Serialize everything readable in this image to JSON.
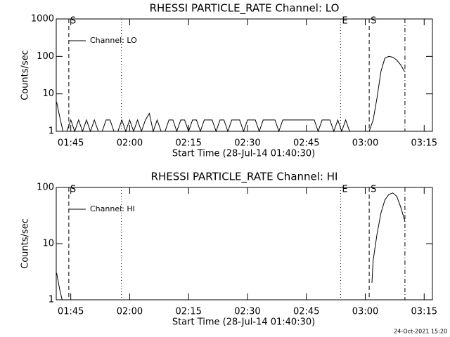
{
  "chart_data": [
    {
      "type": "line",
      "title": "RHESSI PARTICLE_RATE Channel: LO",
      "x_label": "Start Time (28-Jul-14 01:40:30)",
      "y_label": "Counts/sec",
      "log_y": true,
      "legend": "top-left",
      "xlim": [
        101.3,
        197.1
      ],
      "ylim": [
        1,
        1000
      ],
      "xticks": [
        {
          "value": 105,
          "label": "01:45"
        },
        {
          "value": 120,
          "label": "02:00"
        },
        {
          "value": 135,
          "label": "02:15"
        },
        {
          "value": 150,
          "label": "02:30"
        },
        {
          "value": 165,
          "label": "02:45"
        },
        {
          "value": 180,
          "label": "03:00"
        },
        {
          "value": 195,
          "label": "03:15"
        }
      ],
      "yticks": [
        1,
        10,
        100,
        1000
      ],
      "flags": [
        {
          "x": 104.5,
          "style": "dashed",
          "label": "S"
        },
        {
          "x": 117.9,
          "style": "dotted"
        },
        {
          "x": 173.7,
          "style": "dotted",
          "label": "E"
        },
        {
          "x": 181.0,
          "style": "dashed",
          "label": "S"
        },
        {
          "x": 190.1,
          "style": "dashdot"
        }
      ],
      "series": [
        {
          "name": "Channel: LO",
          "color": "#000000",
          "x": [
            101.4,
            102,
            103,
            104,
            105,
            106,
            107,
            108,
            109,
            110,
            111,
            112,
            113,
            114,
            115,
            116,
            117,
            118,
            119,
            120,
            121,
            122,
            123,
            124,
            125,
            126,
            127,
            128,
            129,
            130,
            131,
            132,
            133,
            134,
            135,
            136,
            137,
            138,
            139,
            140,
            141,
            142,
            143,
            144,
            145,
            146,
            147,
            148,
            149,
            150,
            151,
            152,
            153,
            154,
            155,
            156,
            157,
            158,
            159,
            160,
            161,
            162,
            163,
            164,
            165,
            166,
            167,
            168,
            169,
            170,
            171,
            172,
            173,
            174,
            175,
            176,
            177,
            178,
            179,
            180,
            181,
            182,
            183,
            184,
            185,
            186,
            187,
            188,
            189,
            190
          ],
          "values": [
            6,
            3,
            1,
            1,
            2,
            1,
            2,
            1,
            2,
            1,
            2,
            1,
            1,
            2,
            2,
            1,
            1,
            2,
            1,
            2,
            1,
            2,
            1,
            2,
            3,
            1,
            2,
            1,
            1,
            2,
            2,
            1,
            2,
            2,
            1,
            2,
            2,
            1,
            2,
            2,
            2,
            1,
            2,
            2,
            1,
            2,
            2,
            2,
            1,
            2,
            2,
            2,
            1,
            2,
            2,
            2,
            2,
            1,
            2,
            2,
            2,
            2,
            2,
            2,
            2,
            2,
            2,
            1,
            2,
            2,
            2,
            1,
            2,
            1,
            2,
            1,
            1,
            1,
            1,
            1,
            1,
            2,
            8,
            40,
            90,
            100,
            95,
            80,
            60,
            40
          ]
        }
      ]
    },
    {
      "type": "line",
      "title": "RHESSI PARTICLE_RATE Channel: HI",
      "x_label": "Start Time (28-Jul-14 01:40:30)",
      "y_label": "Counts/sec",
      "log_y": true,
      "legend": "top-left",
      "xlim": [
        101.3,
        197.1
      ],
      "ylim": [
        1,
        100
      ],
      "xticks": [
        {
          "value": 105,
          "label": "01:45"
        },
        {
          "value": 120,
          "label": "02:00"
        },
        {
          "value": 135,
          "label": "02:15"
        },
        {
          "value": 150,
          "label": "02:30"
        },
        {
          "value": 165,
          "label": "02:45"
        },
        {
          "value": 180,
          "label": "03:00"
        },
        {
          "value": 195,
          "label": "03:15"
        }
      ],
      "yticks": [
        1,
        10,
        100
      ],
      "flags": [
        {
          "x": 104.5,
          "style": "dashed",
          "label": "S"
        },
        {
          "x": 117.9,
          "style": "dotted"
        },
        {
          "x": 173.7,
          "style": "dotted",
          "label": "E"
        },
        {
          "x": 181.0,
          "style": "dashed",
          "label": "S"
        },
        {
          "x": 190.1,
          "style": "dashdot"
        }
      ],
      "series": [
        {
          "name": "Channel: HI",
          "color": "#000000",
          "x": [
            101.4,
            102.2,
            102.8,
            150,
            181.7,
            182,
            183,
            184,
            185,
            186,
            187,
            188,
            189,
            190.1
          ],
          "values": [
            3,
            1.5,
            1,
            null,
            2,
            5,
            15,
            35,
            60,
            75,
            80,
            70,
            45,
            25
          ]
        }
      ]
    }
  ],
  "footer": "24-Oct-2021 15:20"
}
